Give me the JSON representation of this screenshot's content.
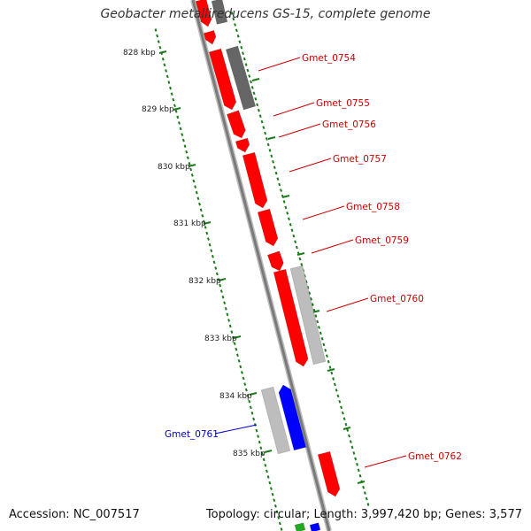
{
  "title": "Geobacter metallireducens GS-15, complete genome",
  "footer": {
    "accession": "Accession: NC_007517",
    "summary": "Topology: circular; Length: 3,997,420 bp; Genes: 3,577"
  },
  "colors": {
    "backbone": "#7a7a7a",
    "tick": "#1a7a1a",
    "forward_gene": "#ff0000",
    "reverse_gene": "#0000ff",
    "other_feature_light": "#bdbdbd",
    "other_feature_dark": "#666666",
    "label_forward": "#cc0000",
    "label_reverse": "#0000cc"
  },
  "scale_labels": [
    "828 kbp",
    "829 kbp",
    "830 kbp",
    "831 kbp",
    "832 kbp",
    "833 kbp",
    "834 kbp",
    "835 kbp"
  ],
  "gene_labels": [
    {
      "name": "Gmet_0754",
      "strand": "forward"
    },
    {
      "name": "Gmet_0755",
      "strand": "forward"
    },
    {
      "name": "Gmet_0756",
      "strand": "forward"
    },
    {
      "name": "Gmet_0757",
      "strand": "forward"
    },
    {
      "name": "Gmet_0758",
      "strand": "forward"
    },
    {
      "name": "Gmet_0759",
      "strand": "forward"
    },
    {
      "name": "Gmet_0760",
      "strand": "forward"
    },
    {
      "name": "Gmet_0761",
      "strand": "reverse"
    },
    {
      "name": "Gmet_0762",
      "strand": "forward"
    }
  ]
}
